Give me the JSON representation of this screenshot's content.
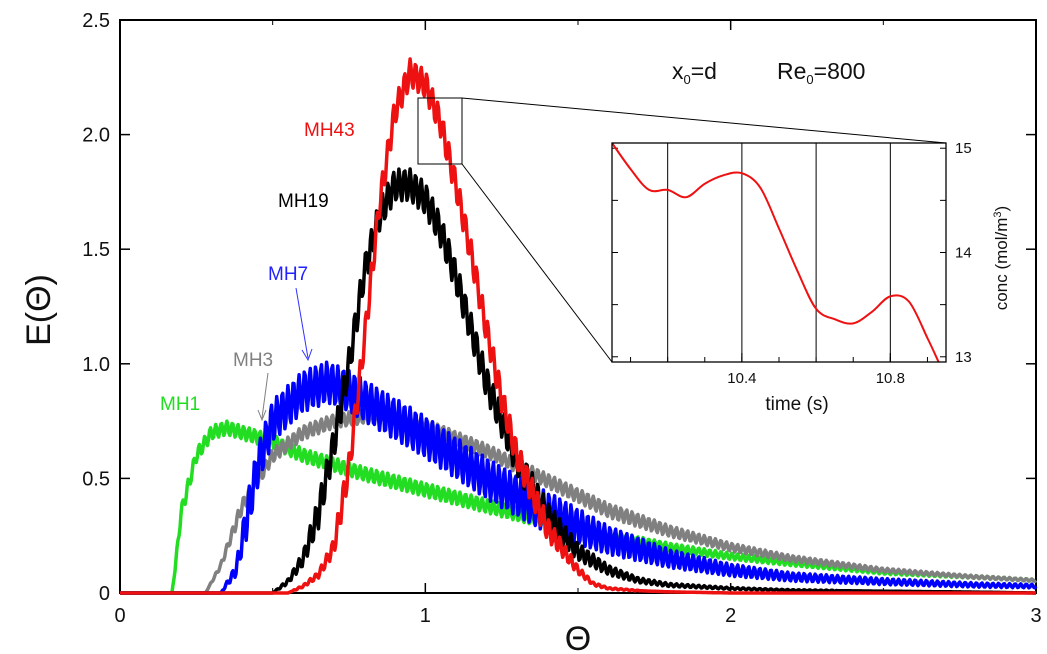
{
  "chart_data": [
    {
      "type": "line",
      "xlabel": "Θ",
      "ylabel": "E(Θ)",
      "xlim": [
        0,
        3
      ],
      "ylim": [
        0,
        2.5
      ],
      "xticks": [
        "0",
        "1",
        "2",
        "3"
      ],
      "yticks": [
        "0",
        "0.5",
        "1.0",
        "1.5",
        "2.0",
        "2.5"
      ],
      "annotation": {
        "x0": "x",
        "x0_sub": "0",
        "x0_rest": "=d",
        "re": "Re",
        "re_sub": "0",
        "re_rest": "=800"
      },
      "grid": false,
      "series": [
        {
          "name": "MH1",
          "color": "#22dd22",
          "osc": 0.03,
          "x": [
            0,
            0.17,
            0.18,
            0.2,
            0.25,
            0.3,
            0.35,
            0.4,
            0.45,
            0.5,
            0.55,
            0.6,
            0.7,
            0.8,
            1.0,
            1.2,
            1.4,
            1.6,
            1.8,
            2.0,
            2.2,
            2.5,
            2.8,
            3.0
          ],
          "y": [
            0,
            0,
            0.1,
            0.35,
            0.6,
            0.7,
            0.72,
            0.7,
            0.68,
            0.66,
            0.63,
            0.6,
            0.56,
            0.52,
            0.45,
            0.38,
            0.31,
            0.25,
            0.2,
            0.16,
            0.13,
            0.09,
            0.07,
            0.055
          ]
        },
        {
          "name": "MH3",
          "color": "#808080",
          "osc": 0.03,
          "x": [
            0,
            0.28,
            0.33,
            0.4,
            0.5,
            0.6,
            0.7,
            0.8,
            0.9,
            1.0,
            1.2,
            1.4,
            1.6,
            1.8,
            2.0,
            2.2,
            2.5,
            2.8,
            3.0
          ],
          "y": [
            0,
            0,
            0.12,
            0.38,
            0.6,
            0.7,
            0.75,
            0.77,
            0.76,
            0.73,
            0.62,
            0.49,
            0.36,
            0.27,
            0.2,
            0.15,
            0.1,
            0.07,
            0.055
          ]
        },
        {
          "name": "MH7",
          "color": "#0000ff",
          "osc": 0.09,
          "x": [
            0,
            0.33,
            0.38,
            0.45,
            0.5,
            0.6,
            0.68,
            0.75,
            0.85,
            1.0,
            1.2,
            1.4,
            1.6,
            1.8,
            2.0,
            2.2,
            2.5,
            2.8,
            3.0
          ],
          "y": [
            0,
            0,
            0.1,
            0.55,
            0.75,
            0.88,
            0.92,
            0.88,
            0.8,
            0.68,
            0.5,
            0.35,
            0.23,
            0.15,
            0.1,
            0.07,
            0.05,
            0.035,
            0.03
          ]
        },
        {
          "name": "MH19",
          "color": "#000000",
          "osc": 0.07,
          "x": [
            0,
            0.5,
            0.55,
            0.6,
            0.65,
            0.7,
            0.75,
            0.8,
            0.85,
            0.9,
            0.95,
            1.0,
            1.05,
            1.1,
            1.15,
            1.2,
            1.3,
            1.4,
            1.5,
            1.6,
            1.7,
            1.8,
            2.0,
            2.2,
            2.5,
            2.8,
            3.0
          ],
          "y": [
            0,
            0,
            0.05,
            0.15,
            0.35,
            0.65,
            1.0,
            1.4,
            1.65,
            1.78,
            1.78,
            1.72,
            1.58,
            1.38,
            1.15,
            0.92,
            0.58,
            0.33,
            0.18,
            0.1,
            0.055,
            0.035,
            0.02,
            0.012,
            0.008,
            0.004,
            0
          ]
        },
        {
          "name": "MH43",
          "color": "#ee1111",
          "osc": 0.06,
          "x": [
            0,
            0.55,
            0.6,
            0.65,
            0.7,
            0.75,
            0.8,
            0.85,
            0.9,
            0.95,
            1.0,
            1.05,
            1.1,
            1.15,
            1.2,
            1.25,
            1.3,
            1.4,
            1.5,
            1.55,
            1.6,
            1.7,
            1.8,
            2.0,
            3.0
          ],
          "y": [
            0,
            0,
            0.03,
            0.08,
            0.2,
            0.55,
            1.1,
            1.7,
            2.1,
            2.27,
            2.22,
            2.05,
            1.78,
            1.48,
            1.15,
            0.85,
            0.6,
            0.28,
            0.1,
            0.04,
            0.02,
            0.01,
            0.005,
            0,
            0
          ]
        }
      ]
    },
    {
      "type": "line",
      "xlabel": "time (s)",
      "ylabel": "conc (mol/m",
      "ylabel_sup": "3",
      "ylabel_end": ")",
      "xlim": [
        10.05,
        10.95
      ],
      "ylim": [
        12.95,
        15.05
      ],
      "xticks": [
        "10.4",
        "10.8"
      ],
      "yticks": [
        "13",
        "14",
        "15"
      ],
      "vlines": [
        10.2,
        10.4,
        10.6,
        10.8
      ],
      "series": [
        {
          "name": "",
          "color": "#ee1111",
          "x": [
            10.05,
            10.1,
            10.15,
            10.2,
            10.25,
            10.3,
            10.35,
            10.4,
            10.45,
            10.5,
            10.55,
            10.6,
            10.65,
            10.7,
            10.75,
            10.8,
            10.85,
            10.9,
            10.93
          ],
          "y": [
            15.05,
            14.8,
            14.6,
            14.6,
            14.53,
            14.66,
            14.74,
            14.76,
            14.62,
            14.23,
            13.82,
            13.46,
            13.36,
            13.32,
            13.43,
            13.58,
            13.53,
            13.18,
            12.95
          ]
        }
      ]
    }
  ]
}
